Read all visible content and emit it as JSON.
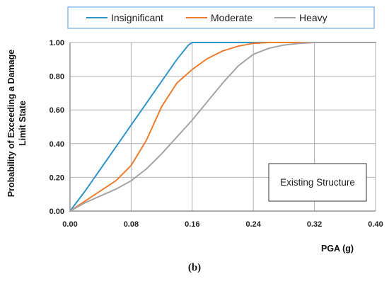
{
  "chart_data": {
    "type": "line",
    "xlabel": "PGA (g)",
    "ylabel_lines": [
      "Probability of Exceeding a Damage",
      "Limit State"
    ],
    "xlim": [
      0,
      0.4
    ],
    "ylim": [
      0,
      1.0
    ],
    "x_ticks": [
      "0.00",
      "0.08",
      "0.16",
      "0.24",
      "0.32",
      "0.40"
    ],
    "y_ticks": [
      "0.00",
      "0.20",
      "0.40",
      "0.60",
      "0.80",
      "1.00"
    ],
    "grid": true,
    "legend_position": "top",
    "annotation": "Existing Structure",
    "series": [
      {
        "name": "Insignificant",
        "color": "#2e96c9",
        "x": [
          0,
          0.02,
          0.04,
          0.06,
          0.08,
          0.1,
          0.12,
          0.14,
          0.155,
          0.16,
          0.2,
          0.4
        ],
        "y": [
          0,
          0.12,
          0.25,
          0.38,
          0.51,
          0.64,
          0.77,
          0.9,
          0.985,
          1.0,
          1.0,
          1.0
        ]
      },
      {
        "name": "Moderate",
        "color": "#ee7d2f",
        "x": [
          0,
          0.02,
          0.04,
          0.06,
          0.08,
          0.1,
          0.12,
          0.14,
          0.16,
          0.18,
          0.2,
          0.22,
          0.24,
          0.26,
          0.4
        ],
        "y": [
          0,
          0.06,
          0.12,
          0.18,
          0.27,
          0.42,
          0.62,
          0.76,
          0.84,
          0.905,
          0.95,
          0.978,
          0.995,
          1.0,
          1.0
        ]
      },
      {
        "name": "Heavy",
        "color": "#a5a5a5",
        "x": [
          0,
          0.02,
          0.04,
          0.06,
          0.08,
          0.1,
          0.12,
          0.14,
          0.16,
          0.18,
          0.2,
          0.22,
          0.24,
          0.26,
          0.28,
          0.3,
          0.32,
          0.4
        ],
        "y": [
          0,
          0.05,
          0.09,
          0.13,
          0.18,
          0.25,
          0.34,
          0.44,
          0.54,
          0.65,
          0.76,
          0.86,
          0.93,
          0.965,
          0.985,
          0.995,
          1.0,
          1.0
        ]
      }
    ]
  },
  "caption": "(b)"
}
